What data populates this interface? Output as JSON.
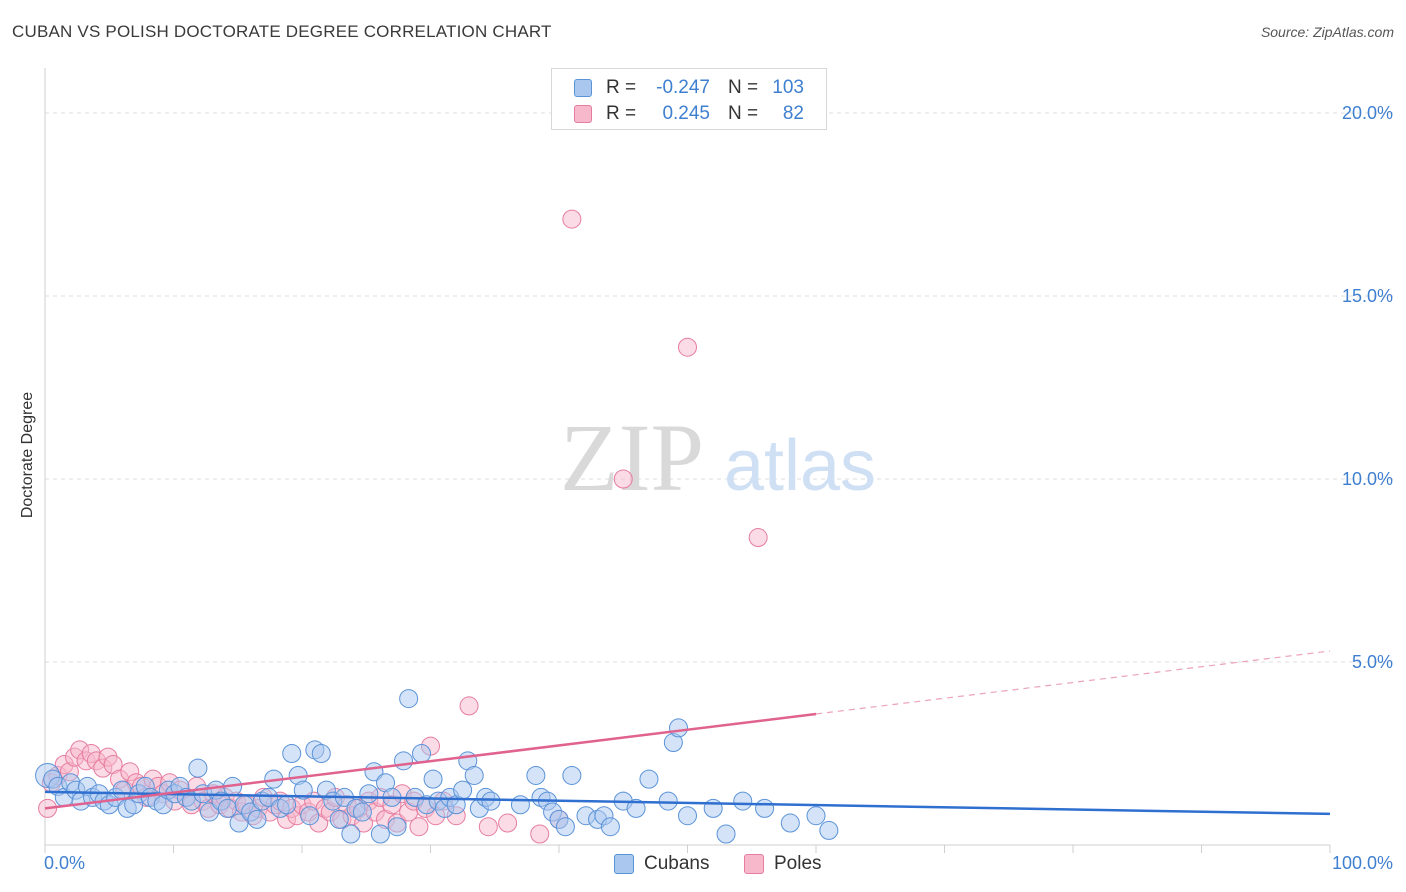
{
  "header": {
    "title": "CUBAN VS POLISH DOCTORATE DEGREE CORRELATION CHART",
    "source": "Source: ZipAtlas.com"
  },
  "watermark": {
    "zip": "ZIP",
    "atlas": "atlas"
  },
  "legend": {
    "rows": [
      {
        "r_label": "R =",
        "r_value": "-0.247",
        "n_label": "N =",
        "n_value": "103"
      },
      {
        "r_label": "R =",
        "r_value": "0.245",
        "n_label": "N =",
        "n_value": "82"
      }
    ]
  },
  "bottom_legend": {
    "cubans": "Cubans",
    "poles": "Poles"
  },
  "colors": {
    "cubans_fill": "#a9c7ef",
    "cubans_stroke": "#5b93d8",
    "cubans_line": "#2f6fcf",
    "poles_fill": "#f7b8cb",
    "poles_stroke": "#e67da0",
    "poles_line": "#e0628f",
    "grid": "#dedede",
    "tick_text": "#3f7fd0"
  },
  "chart_data": {
    "type": "scatter",
    "title": "CUBAN VS POLISH DOCTORATE DEGREE CORRELATION CHART",
    "xlabel": "",
    "ylabel": "Doctorate Degree",
    "xlim": [
      0,
      100
    ],
    "ylim": [
      0,
      20
    ],
    "x_tick_labels": [
      "0.0%",
      "100.0%"
    ],
    "y_tick_labels": [
      "5.0%",
      "10.0%",
      "15.0%",
      "20.0%"
    ],
    "y_ticks": [
      5,
      10,
      15,
      20
    ],
    "grid": true,
    "legend_position": "top-center",
    "series": [
      {
        "name": "Cubans",
        "r": -0.247,
        "n": 103,
        "trend": {
          "x": [
            0,
            100
          ],
          "y": [
            1.45,
            0.85
          ],
          "dashed_from": null
        },
        "points": [
          [
            0.2,
            1.9
          ],
          [
            0.6,
            1.8
          ],
          [
            1.0,
            1.6
          ],
          [
            1.5,
            1.3
          ],
          [
            2.0,
            1.7
          ],
          [
            2.4,
            1.5
          ],
          [
            2.8,
            1.2
          ],
          [
            3.3,
            1.6
          ],
          [
            3.7,
            1.3
          ],
          [
            4.2,
            1.4
          ],
          [
            4.6,
            1.2
          ],
          [
            5.0,
            1.1
          ],
          [
            5.5,
            1.3
          ],
          [
            6.0,
            1.5
          ],
          [
            6.4,
            1.0
          ],
          [
            6.9,
            1.1
          ],
          [
            7.3,
            1.4
          ],
          [
            7.8,
            1.6
          ],
          [
            8.2,
            1.3
          ],
          [
            8.7,
            1.2
          ],
          [
            9.2,
            1.1
          ],
          [
            9.6,
            1.5
          ],
          [
            10.1,
            1.4
          ],
          [
            10.5,
            1.6
          ],
          [
            11.0,
            1.3
          ],
          [
            11.4,
            1.2
          ],
          [
            11.9,
            2.1
          ],
          [
            12.3,
            1.4
          ],
          [
            12.8,
            0.9
          ],
          [
            13.3,
            1.5
          ],
          [
            13.7,
            1.2
          ],
          [
            14.2,
            1.0
          ],
          [
            14.6,
            1.6
          ],
          [
            15.1,
            0.6
          ],
          [
            15.5,
            1.1
          ],
          [
            16.0,
            0.9
          ],
          [
            16.5,
            0.7
          ],
          [
            16.9,
            1.2
          ],
          [
            17.4,
            1.3
          ],
          [
            17.8,
            1.8
          ],
          [
            18.3,
            1.0
          ],
          [
            18.8,
            1.1
          ],
          [
            19.2,
            2.5
          ],
          [
            19.7,
            1.9
          ],
          [
            20.1,
            1.5
          ],
          [
            20.6,
            0.8
          ],
          [
            21.0,
            2.6
          ],
          [
            21.5,
            2.5
          ],
          [
            21.9,
            1.5
          ],
          [
            22.4,
            1.2
          ],
          [
            22.9,
            0.7
          ],
          [
            23.3,
            1.3
          ],
          [
            23.8,
            0.3
          ],
          [
            24.2,
            1.0
          ],
          [
            24.7,
            0.9
          ],
          [
            25.2,
            1.4
          ],
          [
            25.6,
            2.0
          ],
          [
            26.1,
            0.3
          ],
          [
            26.5,
            1.7
          ],
          [
            27.0,
            1.3
          ],
          [
            27.4,
            0.5
          ],
          [
            27.9,
            2.3
          ],
          [
            28.3,
            4.0
          ],
          [
            28.8,
            1.3
          ],
          [
            29.3,
            2.5
          ],
          [
            29.7,
            1.1
          ],
          [
            30.2,
            1.8
          ],
          [
            30.6,
            1.2
          ],
          [
            31.1,
            1.0
          ],
          [
            31.5,
            1.3
          ],
          [
            32.0,
            1.1
          ],
          [
            32.5,
            1.5
          ],
          [
            32.9,
            2.3
          ],
          [
            33.4,
            1.9
          ],
          [
            33.8,
            1.0
          ],
          [
            34.3,
            1.3
          ],
          [
            34.7,
            1.2
          ],
          [
            37.0,
            1.1
          ],
          [
            38.2,
            1.9
          ],
          [
            38.6,
            1.3
          ],
          [
            39.1,
            1.2
          ],
          [
            39.5,
            0.9
          ],
          [
            40.0,
            0.7
          ],
          [
            40.5,
            0.5
          ],
          [
            41.0,
            1.9
          ],
          [
            42.1,
            0.8
          ],
          [
            43.0,
            0.7
          ],
          [
            43.5,
            0.8
          ],
          [
            44.0,
            0.5
          ],
          [
            45.0,
            1.2
          ],
          [
            46.0,
            1.0
          ],
          [
            47.0,
            1.8
          ],
          [
            48.5,
            1.2
          ],
          [
            48.9,
            2.8
          ],
          [
            49.3,
            3.2
          ],
          [
            50.0,
            0.8
          ],
          [
            52.0,
            1.0
          ],
          [
            53.0,
            0.3
          ],
          [
            54.3,
            1.2
          ],
          [
            56.0,
            1.0
          ],
          [
            58.0,
            0.6
          ],
          [
            60.0,
            0.8
          ],
          [
            61.0,
            0.4
          ]
        ]
      },
      {
        "name": "Poles",
        "r": 0.245,
        "n": 82,
        "trend": {
          "x": [
            0,
            100
          ],
          "y": [
            1.0,
            5.3
          ],
          "dashed_from": 60
        },
        "points": [
          [
            0.2,
            1.0
          ],
          [
            0.5,
            1.7
          ],
          [
            1.0,
            1.9
          ],
          [
            1.5,
            2.2
          ],
          [
            1.9,
            2.0
          ],
          [
            2.3,
            2.4
          ],
          [
            2.7,
            2.6
          ],
          [
            3.2,
            2.3
          ],
          [
            3.6,
            2.5
          ],
          [
            4.0,
            2.3
          ],
          [
            4.5,
            2.1
          ],
          [
            4.9,
            2.4
          ],
          [
            5.3,
            2.2
          ],
          [
            5.8,
            1.8
          ],
          [
            6.2,
            1.5
          ],
          [
            6.6,
            2.0
          ],
          [
            7.1,
            1.7
          ],
          [
            7.5,
            1.6
          ],
          [
            7.9,
            1.3
          ],
          [
            8.4,
            1.8
          ],
          [
            8.8,
            1.6
          ],
          [
            9.2,
            1.4
          ],
          [
            9.7,
            1.7
          ],
          [
            10.1,
            1.2
          ],
          [
            10.5,
            1.5
          ],
          [
            11.0,
            1.3
          ],
          [
            11.4,
            1.1
          ],
          [
            11.8,
            1.6
          ],
          [
            12.3,
            1.2
          ],
          [
            12.7,
            1.0
          ],
          [
            13.1,
            1.4
          ],
          [
            13.6,
            1.1
          ],
          [
            14.0,
            1.3
          ],
          [
            14.4,
            1.0
          ],
          [
            14.9,
            1.2
          ],
          [
            15.3,
            0.9
          ],
          [
            15.7,
            1.1
          ],
          [
            16.2,
            0.8
          ],
          [
            16.6,
            1.0
          ],
          [
            17.0,
            1.3
          ],
          [
            17.5,
            0.9
          ],
          [
            17.9,
            1.1
          ],
          [
            18.3,
            1.2
          ],
          [
            18.8,
            0.7
          ],
          [
            19.2,
            1.0
          ],
          [
            19.6,
            0.8
          ],
          [
            20.0,
            1.1
          ],
          [
            20.5,
            0.9
          ],
          [
            20.9,
            1.2
          ],
          [
            21.3,
            0.6
          ],
          [
            21.8,
            1.0
          ],
          [
            22.2,
            0.9
          ],
          [
            22.6,
            1.3
          ],
          [
            23.1,
            0.7
          ],
          [
            23.5,
            1.1
          ],
          [
            23.9,
            0.8
          ],
          [
            24.4,
            1.0
          ],
          [
            24.8,
            0.6
          ],
          [
            25.2,
            1.2
          ],
          [
            25.7,
            0.9
          ],
          [
            26.1,
            1.3
          ],
          [
            26.5,
            0.7
          ],
          [
            27.0,
            1.1
          ],
          [
            27.4,
            0.6
          ],
          [
            27.8,
            1.4
          ],
          [
            28.3,
            0.9
          ],
          [
            28.7,
            1.2
          ],
          [
            29.1,
            0.5
          ],
          [
            29.6,
            1.0
          ],
          [
            30.0,
            2.7
          ],
          [
            30.4,
            0.8
          ],
          [
            31.0,
            1.2
          ],
          [
            32.0,
            0.8
          ],
          [
            33.0,
            3.8
          ],
          [
            34.5,
            0.5
          ],
          [
            36.0,
            0.6
          ],
          [
            38.5,
            0.3
          ],
          [
            40.0,
            0.7
          ],
          [
            41.0,
            17.1
          ],
          [
            50.0,
            13.6
          ],
          [
            45.0,
            10.0
          ],
          [
            55.5,
            8.4
          ]
        ]
      }
    ]
  }
}
